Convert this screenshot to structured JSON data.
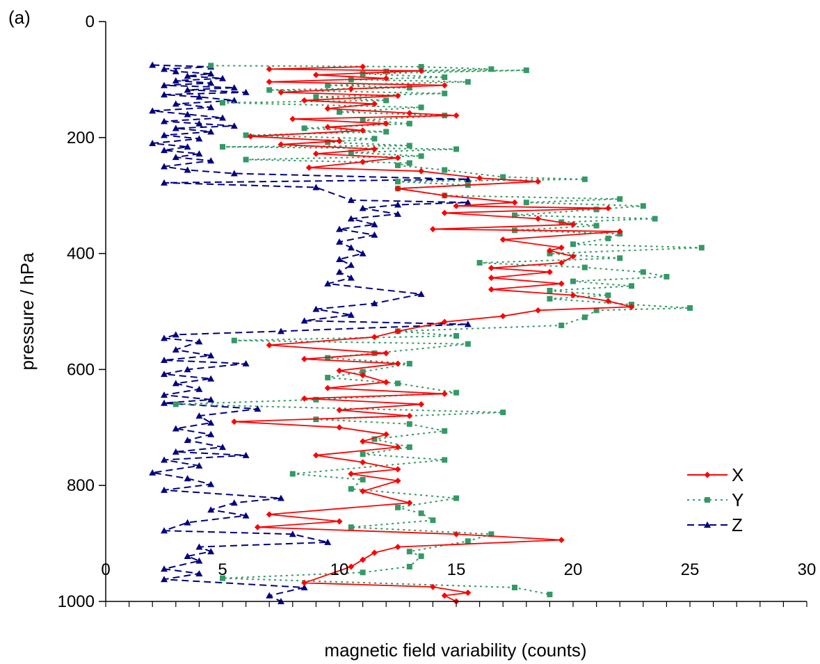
{
  "panel_label": "(a)",
  "chart_data": {
    "type": "line",
    "xlabel": "magnetic field variability (counts)",
    "ylabel": "pressure / hPa",
    "xlim": [
      0,
      30
    ],
    "ylim": [
      0,
      1000
    ],
    "y_inverted": true,
    "x_ticks": [
      0,
      5,
      10,
      15,
      20,
      25,
      30
    ],
    "x_tick_labels": [
      "0",
      "5",
      "10",
      "15",
      "20",
      "25",
      "30"
    ],
    "y_ticks": [
      0,
      200,
      400,
      600,
      800,
      1000
    ],
    "y_tick_labels": [
      "0",
      "200",
      "400",
      "600",
      "800",
      "1000"
    ],
    "grid": false,
    "legend_position": "lower-right",
    "series": [
      {
        "name": "X",
        "color": "#ff0000",
        "line_style": "solid",
        "marker": "diamond",
        "points": [
          [
            11.0,
            78
          ],
          [
            7.0,
            82
          ],
          [
            13.5,
            85
          ],
          [
            9.0,
            92
          ],
          [
            12.0,
            98
          ],
          [
            7.0,
            104
          ],
          [
            14.5,
            110
          ],
          [
            10.5,
            116
          ],
          [
            7.5,
            122
          ],
          [
            12.5,
            128
          ],
          [
            8.5,
            136
          ],
          [
            11.5,
            142
          ],
          [
            9.5,
            150
          ],
          [
            13.0,
            158
          ],
          [
            15.0,
            162
          ],
          [
            8.0,
            168
          ],
          [
            12.0,
            176
          ],
          [
            9.5,
            182
          ],
          [
            11.0,
            188
          ],
          [
            6.2,
            198
          ],
          [
            10.0,
            206
          ],
          [
            7.5,
            212
          ],
          [
            11.5,
            220
          ],
          [
            9.0,
            228
          ],
          [
            12.5,
            235
          ],
          [
            11.0,
            242
          ],
          [
            8.7,
            252
          ],
          [
            13.5,
            258
          ],
          [
            16.0,
            270
          ],
          [
            18.5,
            276
          ],
          [
            12.5,
            288
          ],
          [
            14.5,
            300
          ],
          [
            17.5,
            312
          ],
          [
            15.0,
            318
          ],
          [
            21.5,
            322
          ],
          [
            14.5,
            330
          ],
          [
            18.5,
            340
          ],
          [
            20.0,
            350
          ],
          [
            14.0,
            358
          ],
          [
            22.0,
            362
          ],
          [
            17.0,
            376
          ],
          [
            19.5,
            390
          ],
          [
            19.0,
            395
          ],
          [
            20.0,
            405
          ],
          [
            19.5,
            416
          ],
          [
            16.5,
            425
          ],
          [
            19.0,
            432
          ],
          [
            16.5,
            442
          ],
          [
            19.5,
            452
          ],
          [
            16.5,
            462
          ],
          [
            20.0,
            472
          ],
          [
            21.5,
            482
          ],
          [
            22.5,
            492
          ],
          [
            18.5,
            498
          ],
          [
            17.0,
            508
          ],
          [
            14.5,
            518
          ],
          [
            12.5,
            534
          ],
          [
            11.5,
            544
          ],
          [
            7.0,
            558
          ],
          [
            12.0,
            572
          ],
          [
            8.5,
            582
          ],
          [
            12.5,
            590
          ],
          [
            10.0,
            602
          ],
          [
            11.0,
            610
          ],
          [
            12.0,
            622
          ],
          [
            9.5,
            632
          ],
          [
            14.5,
            642
          ],
          [
            8.5,
            650
          ],
          [
            13.5,
            660
          ],
          [
            10.0,
            670
          ],
          [
            13.0,
            680
          ],
          [
            5.5,
            690
          ],
          [
            10.0,
            700
          ],
          [
            12.0,
            712
          ],
          [
            11.0,
            724
          ],
          [
            12.5,
            734
          ],
          [
            9.0,
            748
          ],
          [
            11.0,
            760
          ],
          [
            12.5,
            772
          ],
          [
            10.5,
            780
          ],
          [
            12.5,
            792
          ],
          [
            11.0,
            810
          ],
          [
            13.0,
            830
          ],
          [
            7.0,
            850
          ],
          [
            10.0,
            862
          ],
          [
            6.5,
            872
          ],
          [
            15.0,
            884
          ],
          [
            19.5,
            894
          ],
          [
            12.5,
            906
          ],
          [
            11.5,
            916
          ],
          [
            11.0,
            928
          ],
          [
            10.5,
            940
          ],
          [
            8.5,
            968
          ],
          [
            14.0,
            975
          ],
          [
            15.5,
            985
          ],
          [
            14.5,
            990
          ],
          [
            15.0,
            1000
          ]
        ]
      },
      {
        "name": "Y",
        "color": "#339966",
        "line_style": "dotted",
        "marker": "square",
        "points": [
          [
            4.5,
            76
          ],
          [
            13.5,
            78
          ],
          [
            16.5,
            82
          ],
          [
            12.0,
            86
          ],
          [
            18.0,
            84
          ],
          [
            11.0,
            90
          ],
          [
            14.5,
            96
          ],
          [
            10.5,
            100
          ],
          [
            15.5,
            104
          ],
          [
            9.5,
            110
          ],
          [
            13.0,
            114
          ],
          [
            7.0,
            118
          ],
          [
            14.5,
            124
          ],
          [
            9.0,
            130
          ],
          [
            12.0,
            136
          ],
          [
            5.0,
            140
          ],
          [
            13.5,
            148
          ],
          [
            10.0,
            156
          ],
          [
            14.5,
            162
          ],
          [
            11.0,
            170
          ],
          [
            13.0,
            176
          ],
          [
            8.5,
            184
          ],
          [
            12.0,
            190
          ],
          [
            6.0,
            196
          ],
          [
            11.5,
            202
          ],
          [
            9.5,
            208
          ],
          [
            13.0,
            214
          ],
          [
            5.0,
            216
          ],
          [
            15.0,
            220
          ],
          [
            10.5,
            226
          ],
          [
            13.5,
            232
          ],
          [
            6.0,
            238
          ],
          [
            13.0,
            244
          ],
          [
            12.5,
            248
          ],
          [
            14.5,
            256
          ],
          [
            17.0,
            268
          ],
          [
            20.5,
            272
          ],
          [
            12.5,
            276
          ],
          [
            15.5,
            282
          ],
          [
            12.5,
            288
          ],
          [
            14.5,
            300
          ],
          [
            22.0,
            306
          ],
          [
            18.0,
            312
          ],
          [
            23.0,
            318
          ],
          [
            21.0,
            324
          ],
          [
            17.5,
            334
          ],
          [
            23.5,
            340
          ],
          [
            19.5,
            346
          ],
          [
            21.0,
            352
          ],
          [
            17.5,
            360
          ],
          [
            22.0,
            366
          ],
          [
            21.5,
            374
          ],
          [
            20.0,
            384
          ],
          [
            25.5,
            390
          ],
          [
            19.0,
            400
          ],
          [
            22.0,
            408
          ],
          [
            16.0,
            416
          ],
          [
            20.5,
            424
          ],
          [
            23.0,
            432
          ],
          [
            24.0,
            440
          ],
          [
            20.0,
            448
          ],
          [
            22.5,
            456
          ],
          [
            19.0,
            464
          ],
          [
            21.5,
            472
          ],
          [
            19.0,
            478
          ],
          [
            22.5,
            488
          ],
          [
            25.0,
            494
          ],
          [
            21.0,
            498
          ],
          [
            20.5,
            510
          ],
          [
            19.5,
            524
          ],
          [
            12.5,
            534
          ],
          [
            15.0,
            542
          ],
          [
            5.5,
            550
          ],
          [
            15.5,
            556
          ],
          [
            11.5,
            572
          ],
          [
            9.5,
            580
          ],
          [
            13.0,
            590
          ],
          [
            11.0,
            604
          ],
          [
            9.5,
            614
          ],
          [
            12.5,
            624
          ],
          [
            15.0,
            640
          ],
          [
            9.0,
            652
          ],
          [
            3.0,
            660
          ],
          [
            17.0,
            674
          ],
          [
            9.0,
            686
          ],
          [
            13.0,
            694
          ],
          [
            14.5,
            706
          ],
          [
            11.5,
            720
          ],
          [
            13.0,
            734
          ],
          [
            11.0,
            746
          ],
          [
            14.5,
            756
          ],
          [
            8.0,
            780
          ],
          [
            11.0,
            790
          ],
          [
            10.5,
            806
          ],
          [
            15.0,
            822
          ],
          [
            12.5,
            838
          ],
          [
            13.5,
            848
          ],
          [
            14.0,
            860
          ],
          [
            10.5,
            872
          ],
          [
            16.5,
            884
          ],
          [
            15.5,
            896
          ],
          [
            13.0,
            914
          ],
          [
            13.5,
            922
          ],
          [
            13.0,
            940
          ],
          [
            11.0,
            950
          ],
          [
            5.0,
            960
          ],
          [
            17.5,
            976
          ],
          [
            19.0,
            988
          ]
        ]
      },
      {
        "name": "Z",
        "color": "#000080",
        "line_style": "dashed",
        "marker": "triangle",
        "points": [
          [
            2.0,
            75
          ],
          [
            4.5,
            78
          ],
          [
            2.5,
            82
          ],
          [
            3.0,
            86
          ],
          [
            4.5,
            90
          ],
          [
            3.5,
            94
          ],
          [
            5.0,
            98
          ],
          [
            3.0,
            102
          ],
          [
            4.5,
            106
          ],
          [
            2.5,
            110
          ],
          [
            5.5,
            114
          ],
          [
            3.5,
            118
          ],
          [
            6.0,
            122
          ],
          [
            2.5,
            126
          ],
          [
            4.0,
            130
          ],
          [
            5.5,
            136
          ],
          [
            3.0,
            142
          ],
          [
            4.5,
            148
          ],
          [
            2.0,
            154
          ],
          [
            3.5,
            160
          ],
          [
            5.0,
            166
          ],
          [
            2.5,
            172
          ],
          [
            4.0,
            176
          ],
          [
            5.5,
            180
          ],
          [
            3.0,
            184
          ],
          [
            4.5,
            190
          ],
          [
            2.5,
            196
          ],
          [
            4.0,
            202
          ],
          [
            2.0,
            210
          ],
          [
            3.5,
            216
          ],
          [
            2.5,
            222
          ],
          [
            4.0,
            228
          ],
          [
            3.0,
            234
          ],
          [
            4.5,
            240
          ],
          [
            2.5,
            250
          ],
          [
            3.5,
            256
          ],
          [
            5.5,
            262
          ],
          [
            15.5,
            272
          ],
          [
            2.5,
            278
          ],
          [
            9.0,
            286
          ],
          [
            10.5,
            308
          ],
          [
            15.5,
            312
          ],
          [
            12.5,
            316
          ],
          [
            11.0,
            322
          ],
          [
            12.5,
            332
          ],
          [
            10.5,
            340
          ],
          [
            11.5,
            350
          ],
          [
            10.0,
            358
          ],
          [
            11.5,
            368
          ],
          [
            10.0,
            380
          ],
          [
            10.5,
            390
          ],
          [
            11.0,
            400
          ],
          [
            10.0,
            410
          ],
          [
            10.5,
            420
          ],
          [
            10.0,
            432
          ],
          [
            10.5,
            442
          ],
          [
            9.5,
            452
          ],
          [
            13.5,
            470
          ],
          [
            11.5,
            486
          ],
          [
            9.0,
            496
          ],
          [
            10.5,
            506
          ],
          [
            8.5,
            516
          ],
          [
            15.5,
            522
          ],
          [
            7.5,
            534
          ],
          [
            3.0,
            540
          ],
          [
            2.5,
            546
          ],
          [
            4.0,
            552
          ],
          [
            3.0,
            566
          ],
          [
            4.5,
            576
          ],
          [
            2.5,
            584
          ],
          [
            6.0,
            590
          ],
          [
            3.5,
            600
          ],
          [
            2.5,
            608
          ],
          [
            4.5,
            616
          ],
          [
            3.0,
            624
          ],
          [
            4.0,
            634
          ],
          [
            2.5,
            644
          ],
          [
            4.5,
            652
          ],
          [
            2.5,
            658
          ],
          [
            6.5,
            668
          ],
          [
            4.0,
            680
          ],
          [
            4.5,
            692
          ],
          [
            3.0,
            702
          ],
          [
            4.5,
            712
          ],
          [
            3.5,
            722
          ],
          [
            5.0,
            734
          ],
          [
            3.0,
            742
          ],
          [
            6.0,
            748
          ],
          [
            2.5,
            756
          ],
          [
            4.0,
            766
          ],
          [
            2.0,
            778
          ],
          [
            3.5,
            788
          ],
          [
            4.5,
            798
          ],
          [
            2.5,
            808
          ],
          [
            7.5,
            822
          ],
          [
            5.5,
            830
          ],
          [
            4.5,
            842
          ],
          [
            6.0,
            852
          ],
          [
            3.5,
            864
          ],
          [
            2.5,
            878
          ],
          [
            8.0,
            884
          ],
          [
            9.5,
            898
          ],
          [
            4.0,
            906
          ],
          [
            4.5,
            914
          ],
          [
            3.5,
            922
          ],
          [
            4.0,
            930
          ],
          [
            2.5,
            944
          ],
          [
            4.0,
            952
          ],
          [
            2.5,
            962
          ],
          [
            8.5,
            976
          ],
          [
            7.0,
            990
          ],
          [
            7.5,
            1000
          ]
        ]
      }
    ]
  }
}
